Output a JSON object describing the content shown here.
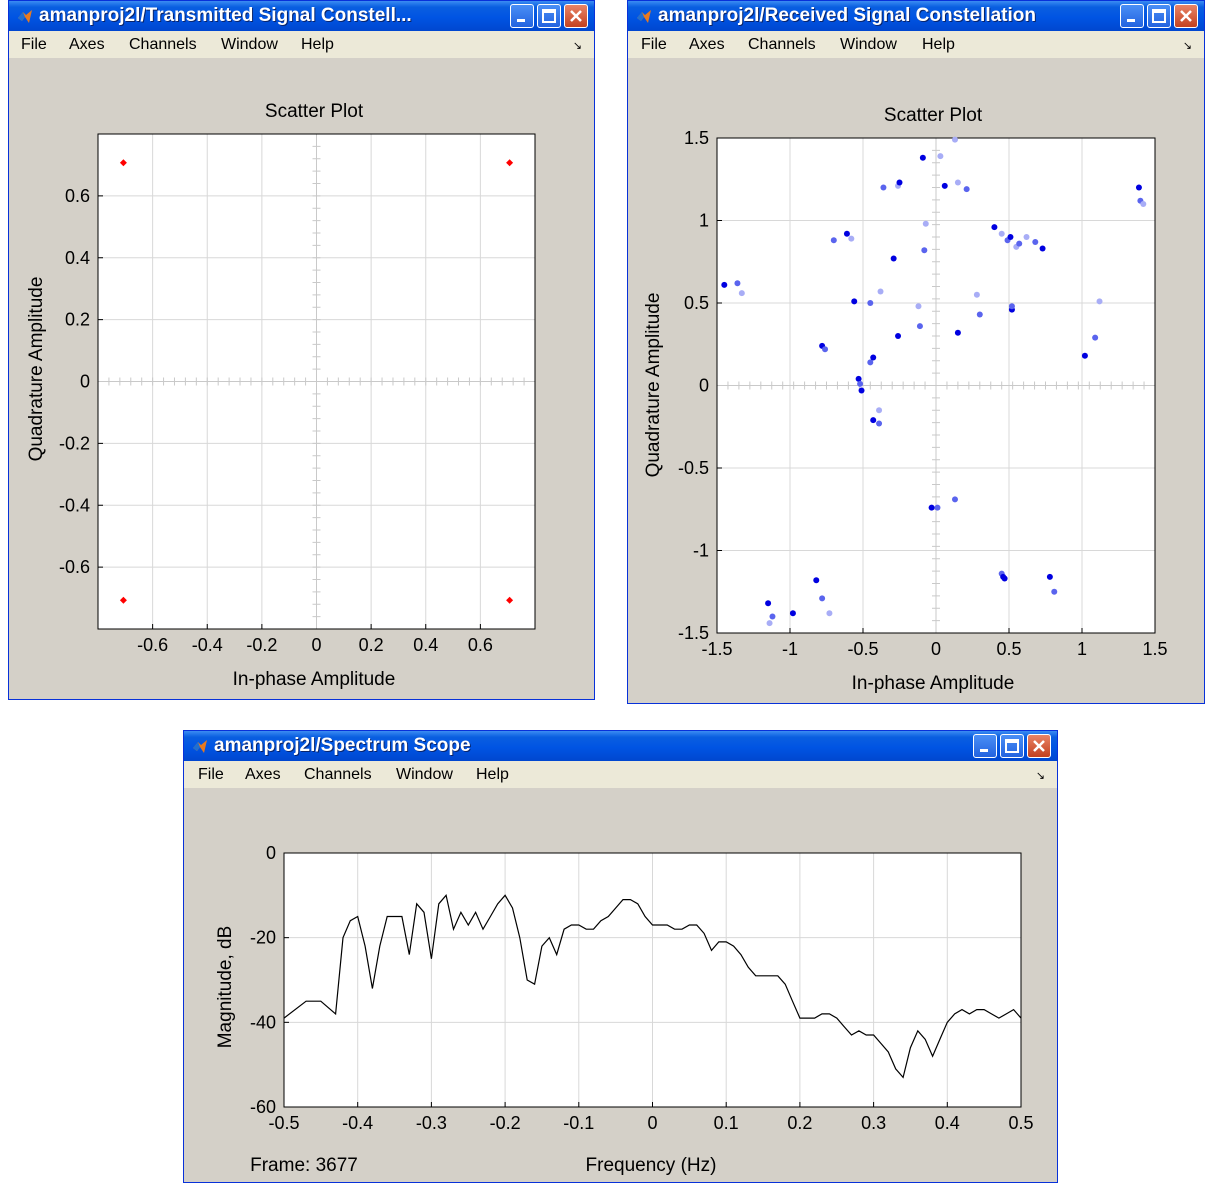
{
  "windows": {
    "transmitted": {
      "title": "amanproj2l/Transmitted Signal Constell...",
      "menu": [
        "File",
        "Axes",
        "Channels",
        "Window",
        "Help"
      ],
      "chart_data": {
        "type": "scatter",
        "title": "Scatter Plot",
        "xlabel": "In-phase Amplitude",
        "ylabel": "Quadrature Amplitude",
        "xlim": [
          -0.8,
          0.8
        ],
        "ylim": [
          -0.8,
          0.8
        ],
        "xticks": [
          "-0.6",
          "-0.4",
          "-0.2",
          "0",
          "0.2",
          "0.4",
          "0.6"
        ],
        "yticks": [
          "0.6",
          "0.4",
          "0.2",
          "0",
          "-0.2",
          "-0.4",
          "-0.6"
        ],
        "grid": true,
        "color": "#ff0000",
        "points": [
          [
            -0.707,
            0.707
          ],
          [
            0.707,
            0.707
          ],
          [
            -0.707,
            -0.707
          ],
          [
            0.707,
            -0.707
          ]
        ]
      }
    },
    "received": {
      "title": "amanproj2l/Received Signal Constellation",
      "menu": [
        "File",
        "Axes",
        "Channels",
        "Window",
        "Help"
      ],
      "chart_data": {
        "type": "scatter",
        "title": "Scatter Plot",
        "xlabel": "In-phase Amplitude",
        "ylabel": "Quadrature Amplitude",
        "xlim": [
          -1.5,
          1.5
        ],
        "ylim": [
          -1.5,
          1.5
        ],
        "xticks": [
          "-1.5",
          "-1",
          "-0.5",
          "0",
          "0.5",
          "1",
          "1.5"
        ],
        "yticks": [
          "1.5",
          "1",
          "0.5",
          "0",
          "-0.5",
          "-1",
          "-1.5"
        ],
        "grid": true,
        "colors": [
          "#0000e0",
          "#5a64ee",
          "#a8adf6"
        ],
        "points": [
          [
            -1.45,
            0.61,
            0
          ],
          [
            -1.36,
            0.62,
            1
          ],
          [
            -1.33,
            0.56,
            2
          ],
          [
            -1.15,
            -1.32,
            0
          ],
          [
            -1.12,
            -1.4,
            1
          ],
          [
            -1.14,
            -1.44,
            2
          ],
          [
            -0.98,
            -1.38,
            0
          ],
          [
            -0.82,
            -1.18,
            0
          ],
          [
            -0.78,
            -1.29,
            1
          ],
          [
            -0.73,
            -1.38,
            2
          ],
          [
            -0.78,
            0.24,
            0
          ],
          [
            -0.76,
            0.22,
            1
          ],
          [
            -0.7,
            0.88,
            1
          ],
          [
            -0.61,
            0.92,
            0
          ],
          [
            -0.58,
            0.89,
            2
          ],
          [
            -0.56,
            0.51,
            0
          ],
          [
            -0.53,
            0.04,
            0
          ],
          [
            -0.52,
            0.01,
            1
          ],
          [
            -0.51,
            -0.03,
            0
          ],
          [
            -0.45,
            0.5,
            1
          ],
          [
            -0.45,
            0.14,
            1
          ],
          [
            -0.43,
            0.17,
            0
          ],
          [
            -0.43,
            -0.21,
            0
          ],
          [
            -0.39,
            -0.15,
            2
          ],
          [
            -0.39,
            -0.23,
            1
          ],
          [
            -0.38,
            0.57,
            2
          ],
          [
            -0.36,
            1.2,
            1
          ],
          [
            -0.29,
            0.77,
            0
          ],
          [
            -0.26,
            1.21,
            2
          ],
          [
            -0.25,
            1.23,
            0
          ],
          [
            -0.26,
            0.3,
            0
          ],
          [
            -0.12,
            0.48,
            2
          ],
          [
            -0.11,
            0.36,
            1
          ],
          [
            -0.08,
            0.82,
            1
          ],
          [
            -0.07,
            0.98,
            2
          ],
          [
            -0.09,
            1.38,
            0
          ],
          [
            -0.03,
            -0.74,
            0
          ],
          [
            0.01,
            -0.74,
            1
          ],
          [
            0.03,
            1.39,
            2
          ],
          [
            0.06,
            1.21,
            0
          ],
          [
            0.13,
            1.49,
            2
          ],
          [
            0.15,
            1.23,
            2
          ],
          [
            0.21,
            1.19,
            1
          ],
          [
            0.15,
            0.32,
            0
          ],
          [
            0.13,
            -0.69,
            1
          ],
          [
            0.28,
            0.55,
            2
          ],
          [
            0.3,
            0.43,
            1
          ],
          [
            0.4,
            0.96,
            0
          ],
          [
            0.45,
            0.92,
            2
          ],
          [
            0.49,
            0.88,
            1
          ],
          [
            0.51,
            0.9,
            0
          ],
          [
            0.52,
            0.46,
            0
          ],
          [
            0.52,
            0.48,
            1
          ],
          [
            0.55,
            0.84,
            2
          ],
          [
            0.57,
            0.86,
            1
          ],
          [
            0.62,
            0.9,
            2
          ],
          [
            0.68,
            0.87,
            1
          ],
          [
            0.73,
            0.83,
            0
          ],
          [
            0.45,
            -1.14,
            1
          ],
          [
            0.46,
            -1.16,
            0
          ],
          [
            0.47,
            -1.17,
            0
          ],
          [
            0.78,
            -1.16,
            0
          ],
          [
            0.81,
            -1.25,
            1
          ],
          [
            1.02,
            0.18,
            0
          ],
          [
            1.09,
            0.29,
            1
          ],
          [
            1.12,
            0.51,
            2
          ],
          [
            1.39,
            1.2,
            0
          ],
          [
            1.4,
            1.12,
            1
          ],
          [
            1.42,
            1.1,
            2
          ]
        ]
      }
    },
    "spectrum": {
      "title": "amanproj2l/Spectrum Scope",
      "menu": [
        "File",
        "Axes",
        "Channels",
        "Window",
        "Help"
      ],
      "frame_label": "Frame: 3677",
      "chart_data": {
        "type": "line",
        "xlabel": "Frequency (Hz)",
        "ylabel": "Magnitude, dB",
        "xlim": [
          -0.5,
          0.5
        ],
        "ylim": [
          -60,
          0
        ],
        "xticks": [
          "-0.5",
          "-0.4",
          "-0.3",
          "-0.2",
          "-0.1",
          "0",
          "0.1",
          "0.2",
          "0.3",
          "0.4",
          "0.5"
        ],
        "yticks": [
          "0",
          "-20",
          "-40",
          "-60"
        ],
        "grid": true,
        "color": "#000000",
        "x": [
          -0.5,
          -0.47,
          -0.45,
          -0.43,
          -0.42,
          -0.41,
          -0.4,
          -0.39,
          -0.38,
          -0.37,
          -0.36,
          -0.35,
          -0.34,
          -0.33,
          -0.32,
          -0.31,
          -0.3,
          -0.29,
          -0.28,
          -0.27,
          -0.26,
          -0.25,
          -0.24,
          -0.23,
          -0.22,
          -0.21,
          -0.2,
          -0.19,
          -0.18,
          -0.17,
          -0.16,
          -0.15,
          -0.14,
          -0.13,
          -0.12,
          -0.11,
          -0.1,
          -0.09,
          -0.08,
          -0.07,
          -0.06,
          -0.05,
          -0.04,
          -0.03,
          -0.02,
          -0.01,
          0,
          0.01,
          0.02,
          0.03,
          0.04,
          0.05,
          0.06,
          0.07,
          0.08,
          0.09,
          0.1,
          0.11,
          0.12,
          0.13,
          0.14,
          0.15,
          0.16,
          0.17,
          0.18,
          0.19,
          0.2,
          0.21,
          0.22,
          0.23,
          0.24,
          0.25,
          0.26,
          0.27,
          0.28,
          0.29,
          0.3,
          0.31,
          0.32,
          0.33,
          0.34,
          0.35,
          0.36,
          0.37,
          0.38,
          0.39,
          0.4,
          0.41,
          0.42,
          0.43,
          0.44,
          0.45,
          0.46,
          0.47,
          0.48,
          0.49,
          0.5
        ],
        "y": [
          -39,
          -35,
          -35,
          -38,
          -20,
          -16,
          -15,
          -22,
          -32,
          -22,
          -15,
          -15,
          -15,
          -24,
          -12,
          -14,
          -25,
          -12,
          -10,
          -18,
          -14,
          -17,
          -14,
          -18,
          -15,
          -12,
          -10,
          -13,
          -20,
          -30,
          -31,
          -22,
          -20,
          -24,
          -18,
          -17,
          -17,
          -18,
          -18,
          -16,
          -15,
          -13,
          -11,
          -11,
          -12,
          -15,
          -17,
          -17,
          -17,
          -18,
          -18,
          -17,
          -17,
          -19,
          -23,
          -21,
          -21,
          -22,
          -24,
          -27,
          -29,
          -29,
          -29,
          -29,
          -31,
          -35,
          -39,
          -39,
          -39,
          -38,
          -38,
          -39,
          -41,
          -43,
          -42,
          -43,
          -43,
          -45,
          -47,
          -51,
          -53,
          -46,
          -42,
          -44,
          -48,
          -44,
          -40,
          -38,
          -37,
          -38,
          -37,
          -37,
          -38,
          -39,
          -38,
          -37,
          -39
        ]
      }
    }
  }
}
